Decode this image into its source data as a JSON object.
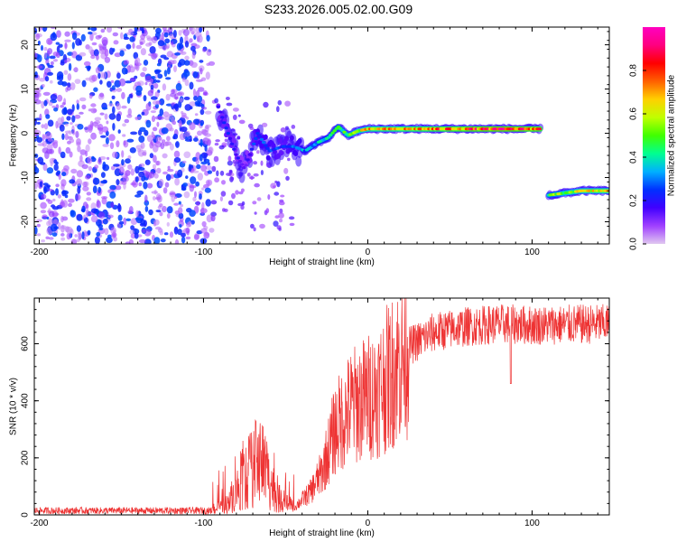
{
  "title": "S233.2026.005.02.00.G09",
  "chart_data": [
    {
      "type": "heatmap",
      "name": "spectrogram",
      "xlabel": "Height of straight line (km)",
      "ylabel": "Frequency (Hz)",
      "xlim": [
        -203,
        147
      ],
      "ylim": [
        -25,
        24
      ],
      "xticks": [
        -200,
        -100,
        0,
        100
      ],
      "yticks": [
        -20,
        -10,
        0,
        10,
        20
      ],
      "colorbar": {
        "label": "Normalized spectral amplitude",
        "range": [
          0,
          1
        ],
        "ticks": [
          "0.0",
          "0.2",
          "0.4",
          "0.6",
          "0.8"
        ],
        "stops": [
          "#e0c8f0",
          "#a040ff",
          "#4000ff",
          "#0030ff",
          "#00b0ff",
          "#00ff90",
          "#40ff00",
          "#c0ff00",
          "#ffd000",
          "#ff6000",
          "#ff0000",
          "#ff0080",
          "#ff00c0"
        ]
      },
      "noise_region": {
        "x_range": [
          -203,
          -95
        ],
        "amplitude": 0.15
      },
      "ridge": [
        {
          "x": -91,
          "y": 6,
          "amp": 0.2
        },
        {
          "x": -85,
          "y": 0,
          "amp": 0.25
        },
        {
          "x": -80,
          "y": -5,
          "amp": 0.2
        },
        {
          "x": -75,
          "y": -8,
          "amp": 0.15
        },
        {
          "x": -67,
          "y": 0,
          "amp": 0.3
        },
        {
          "x": -60,
          "y": -4,
          "amp": 0.3
        },
        {
          "x": -52,
          "y": -3,
          "amp": 0.25
        },
        {
          "x": -45,
          "y": -3,
          "amp": 0.3
        },
        {
          "x": -38,
          "y": -4,
          "amp": 0.35
        },
        {
          "x": -30,
          "y": -2,
          "amp": 0.4
        },
        {
          "x": -24,
          "y": -1,
          "amp": 0.45
        },
        {
          "x": -18,
          "y": 1.5,
          "amp": 0.5
        },
        {
          "x": -12,
          "y": -0.5,
          "amp": 0.55
        },
        {
          "x": -6,
          "y": 0.5,
          "amp": 0.6
        },
        {
          "x": 0,
          "y": 1,
          "amp": 0.7
        },
        {
          "x": 20,
          "y": 1,
          "amp": 0.75
        },
        {
          "x": 40,
          "y": 1,
          "amp": 0.8
        },
        {
          "x": 60,
          "y": 1,
          "amp": 0.85
        },
        {
          "x": 80,
          "y": 1,
          "amp": 0.9
        },
        {
          "x": 105,
          "y": 1,
          "amp": 0.85
        }
      ],
      "ridge2": [
        {
          "x": 110,
          "y": -14,
          "amp": 0.5
        },
        {
          "x": 120,
          "y": -13.5,
          "amp": 0.6
        },
        {
          "x": 130,
          "y": -13,
          "amp": 0.65
        },
        {
          "x": 147,
          "y": -13,
          "amp": 0.7
        }
      ]
    },
    {
      "type": "line",
      "name": "snr",
      "xlabel": "Height of straight line (km)",
      "ylabel": "SNR (10 * v/v)",
      "xlim": [
        -203,
        147
      ],
      "ylim": [
        0,
        760
      ],
      "xticks": [
        -200,
        -100,
        0,
        100
      ],
      "yticks": [
        0,
        200,
        400,
        600
      ],
      "color": "#ee3333",
      "envelope": [
        {
          "x": -203,
          "y": 15
        },
        {
          "x": -95,
          "y": 15
        },
        {
          "x": -85,
          "y": 40
        },
        {
          "x": -75,
          "y": 130
        },
        {
          "x": -65,
          "y": 200
        },
        {
          "x": -55,
          "y": 60
        },
        {
          "x": -45,
          "y": 25
        },
        {
          "x": -35,
          "y": 80
        },
        {
          "x": -28,
          "y": 150
        },
        {
          "x": -20,
          "y": 300
        },
        {
          "x": -10,
          "y": 380
        },
        {
          "x": 5,
          "y": 430
        },
        {
          "x": 15,
          "y": 500
        },
        {
          "x": 25,
          "y": 590
        },
        {
          "x": 40,
          "y": 640
        },
        {
          "x": 60,
          "y": 660
        },
        {
          "x": 80,
          "y": 670
        },
        {
          "x": 100,
          "y": 665
        },
        {
          "x": 147,
          "y": 670
        }
      ]
    }
  ]
}
